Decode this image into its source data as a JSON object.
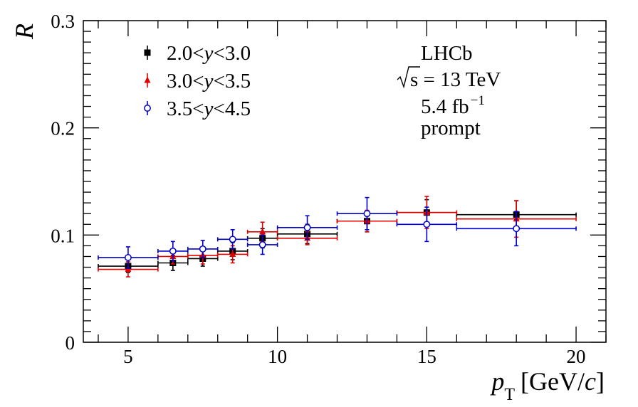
{
  "chart_data": {
    "type": "scatter",
    "title": "",
    "xlabel": "p_T [GeV/c]",
    "xlabel_main": "p",
    "xlabel_sub": "T",
    "xlabel_unit_pre": "[GeV/",
    "xlabel_unit_c": "c",
    "xlabel_unit_post": "]",
    "ylabel": "R",
    "xlim": [
      3.5,
      21.0
    ],
    "ylim": [
      0.0,
      0.3
    ],
    "xticks": [
      5,
      10,
      15,
      20
    ],
    "yticks": [
      0,
      0.1,
      0.2,
      0.3
    ],
    "ytick_labels": [
      "0",
      "0.1",
      "0.2",
      "0.3"
    ],
    "grid": false,
    "legend_position": "top-left",
    "annotation": {
      "experiment": "LHCb",
      "energy_text": "s = 13 TeV",
      "lumi_value": "5.4 fb",
      "lumi_sup": "−1",
      "sample": "prompt"
    },
    "series": [
      {
        "name": "2.0<y<3.0",
        "label_pre": "2.0<",
        "label_var": "y",
        "label_post": "<3.0",
        "color": "#000000",
        "marker": "filled-square",
        "x": [
          5.0,
          6.5,
          7.5,
          8.5,
          9.5,
          11.0,
          13.0,
          15.0,
          18.0
        ],
        "x_low": [
          4.0,
          6.0,
          7.0,
          8.0,
          9.0,
          10.0,
          12.0,
          14.0,
          16.0
        ],
        "x_high": [
          6.0,
          7.0,
          8.0,
          9.0,
          10.0,
          12.0,
          14.0,
          16.0,
          20.0
        ],
        "y": [
          0.071,
          0.074,
          0.078,
          0.085,
          0.097,
          0.101,
          0.113,
          0.121,
          0.119
        ],
        "y_err": [
          0.006,
          0.007,
          0.007,
          0.008,
          0.009,
          0.009,
          0.01,
          0.012,
          0.013
        ]
      },
      {
        "name": "3.0<y<3.5",
        "label_pre": "3.0<",
        "label_var": "y",
        "label_post": "<3.5",
        "color": "#e00000",
        "marker": "filled-triangle",
        "x": [
          5.0,
          6.5,
          7.5,
          8.5,
          9.5,
          11.0,
          13.0,
          15.0,
          18.0
        ],
        "x_low": [
          4.0,
          6.0,
          7.0,
          8.0,
          9.0,
          10.0,
          12.0,
          14.0,
          16.0
        ],
        "x_high": [
          6.0,
          7.0,
          8.0,
          9.0,
          10.0,
          12.0,
          14.0,
          16.0,
          20.0
        ],
        "y": [
          0.068,
          0.08,
          0.081,
          0.082,
          0.103,
          0.097,
          0.113,
          0.121,
          0.115
        ],
        "y_err": [
          0.007,
          0.007,
          0.008,
          0.008,
          0.009,
          0.006,
          0.01,
          0.015,
          0.017
        ]
      },
      {
        "name": "3.5<y<4.5",
        "label_pre": "3.5<",
        "label_var": "y",
        "label_post": "<4.5",
        "color": "#0000cc",
        "marker": "open-circle",
        "x": [
          5.0,
          6.5,
          7.5,
          8.5,
          9.5,
          11.0,
          13.0,
          15.0,
          18.0
        ],
        "x_low": [
          4.0,
          6.0,
          7.0,
          8.0,
          9.0,
          10.0,
          12.0,
          14.0,
          16.0
        ],
        "x_high": [
          6.0,
          7.0,
          8.0,
          9.0,
          10.0,
          12.0,
          14.0,
          16.0,
          20.0
        ],
        "y": [
          0.079,
          0.085,
          0.087,
          0.096,
          0.091,
          0.107,
          0.12,
          0.11,
          0.106
        ],
        "y_err": [
          0.01,
          0.009,
          0.008,
          0.009,
          0.009,
          0.011,
          0.015,
          0.016,
          0.016
        ]
      }
    ]
  }
}
